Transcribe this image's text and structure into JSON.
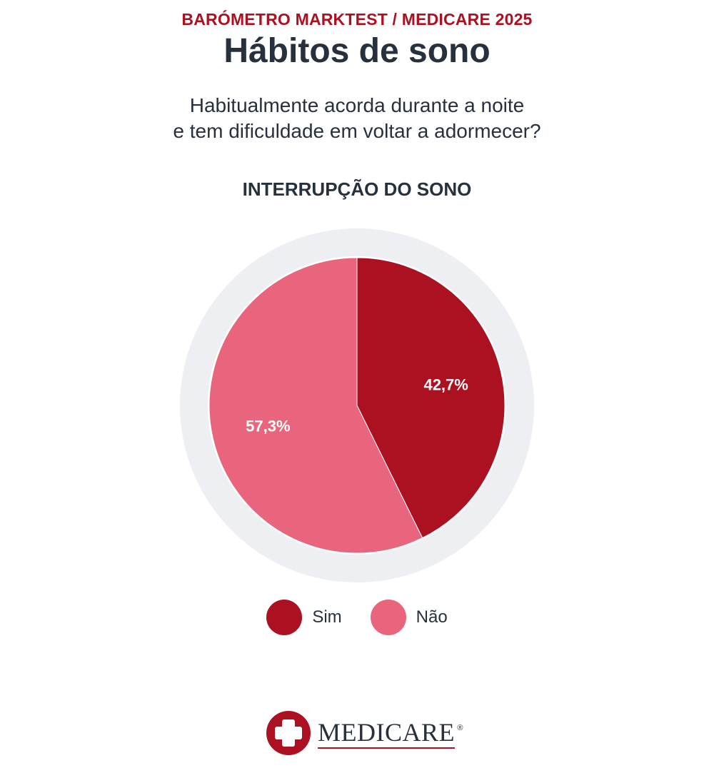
{
  "header": {
    "kicker": "BARÓMETRO MARKTEST / MEDICARE 2025",
    "title": "Hábitos de sono",
    "question_line1": "Habitualmente acorda durante a noite",
    "question_line2": "e tem dificuldade em voltar a adormecer?"
  },
  "chart_data": {
    "type": "pie",
    "title": "INTERRUPÇÃO DO SONO",
    "categories": [
      "Sim",
      "Não"
    ],
    "values": [
      42.7,
      57.3
    ],
    "labels": [
      "42,7%",
      "57,3%"
    ],
    "colors": [
      "#ab1120",
      "#e9657d"
    ],
    "ring_color": "#eeeff3",
    "legend_position": "bottom"
  },
  "legend": [
    {
      "label": "Sim",
      "color": "#ab1120"
    },
    {
      "label": "Não",
      "color": "#e9657d"
    }
  ],
  "logo": {
    "text": "MEDICARE",
    "mark": "®",
    "icon": "medical-cross-icon",
    "color": "#ab1120"
  }
}
